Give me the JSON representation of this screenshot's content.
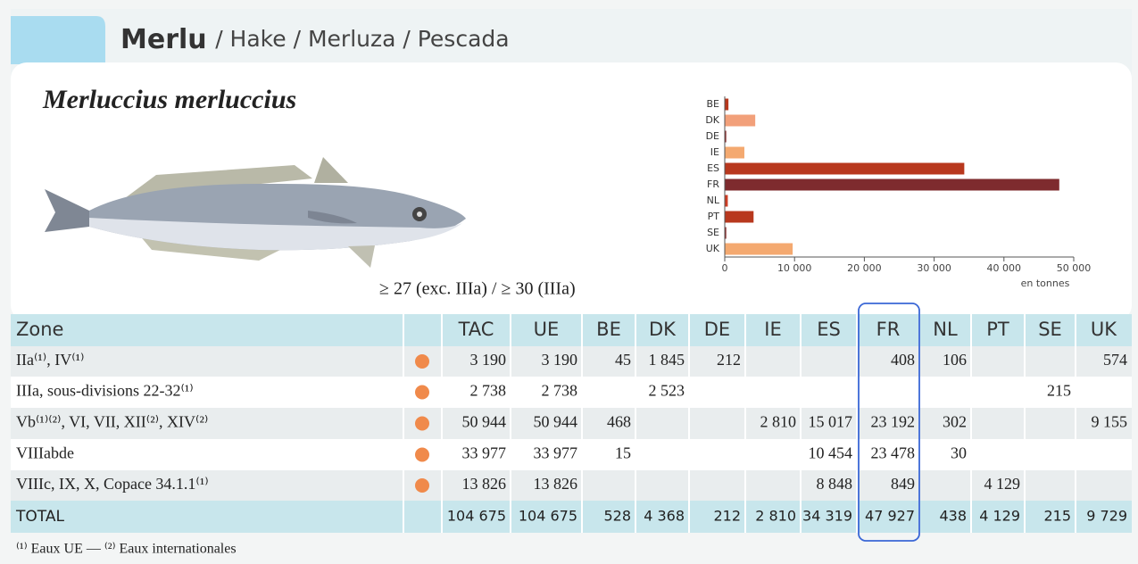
{
  "header": {
    "title": "Merlu",
    "subtitle": "/ Hake / Merluza / Pescada"
  },
  "species": "Merluccius merluccius",
  "size_note": "≥ 27 (exc. IIIa) / ≥ 30 (IIIa)",
  "chart_data": {
    "type": "hbar",
    "categories": [
      "BE",
      "DK",
      "DE",
      "IE",
      "ES",
      "FR",
      "NL",
      "PT",
      "SE",
      "UK"
    ],
    "values": [
      528,
      4368,
      212,
      2810,
      34319,
      47927,
      438,
      4129,
      215,
      9729
    ],
    "colors": [
      "#b8381e",
      "#f2a07a",
      "#8a2c2c",
      "#f4a970",
      "#b8381e",
      "#7e2b2e",
      "#cc3d25",
      "#b8381e",
      "#8a2c2c",
      "#f4a970"
    ],
    "xlim": [
      0,
      50000
    ],
    "xticks": [
      0,
      {
        "value": 10000,
        "label": "10 000"
      },
      {
        "value": 20000,
        "label": "20 000"
      },
      {
        "value": 30000,
        "label": "30 000"
      },
      {
        "value": 40000,
        "label": "40 000"
      },
      {
        "value": 50000,
        "label": "50 000"
      }
    ],
    "x_label": "en tonnes"
  },
  "table": {
    "header": [
      "Zone",
      "TAC",
      "UE",
      "BE",
      "DK",
      "DE",
      "IE",
      "ES",
      "FR",
      "NL",
      "PT",
      "SE",
      "UK"
    ],
    "rows": [
      [
        "IIa⁽¹⁾, IV⁽¹⁾",
        "3 190",
        "3 190",
        "45",
        "1 845",
        "212",
        null,
        null,
        "408",
        "106",
        null,
        null,
        "574"
      ],
      [
        "IIIa, sous-divisions 22-32⁽¹⁾",
        "2 738",
        "2 738",
        null,
        "2 523",
        null,
        null,
        null,
        null,
        null,
        null,
        "215",
        null
      ],
      [
        "Vb⁽¹⁾⁽²⁾, VI, VII, XII⁽²⁾, XIV⁽²⁾",
        "50 944",
        "50 944",
        "468",
        null,
        null,
        "2 810",
        "15 017",
        "23 192",
        "302",
        null,
        null,
        "9 155"
      ],
      [
        "VIIIabde",
        "33 977",
        "33 977",
        "15",
        null,
        null,
        null,
        "10 454",
        "23 478",
        "30",
        null,
        null,
        null
      ],
      [
        "VIIIc, IX, X, Copace 34.1.1⁽¹⁾",
        "13 826",
        "13 826",
        null,
        null,
        null,
        null,
        "8 848",
        "849",
        null,
        "4 129",
        null,
        null
      ]
    ],
    "total": [
      "TOTAL",
      "104 675",
      "104 675",
      "528",
      "4 368",
      "212",
      "2 810",
      "34 319",
      "47 927",
      "438",
      "4 129",
      "215",
      "9 729"
    ]
  },
  "footnote": "⁽¹⁾ Eaux UE — ⁽²⁾ Eaux internationales"
}
